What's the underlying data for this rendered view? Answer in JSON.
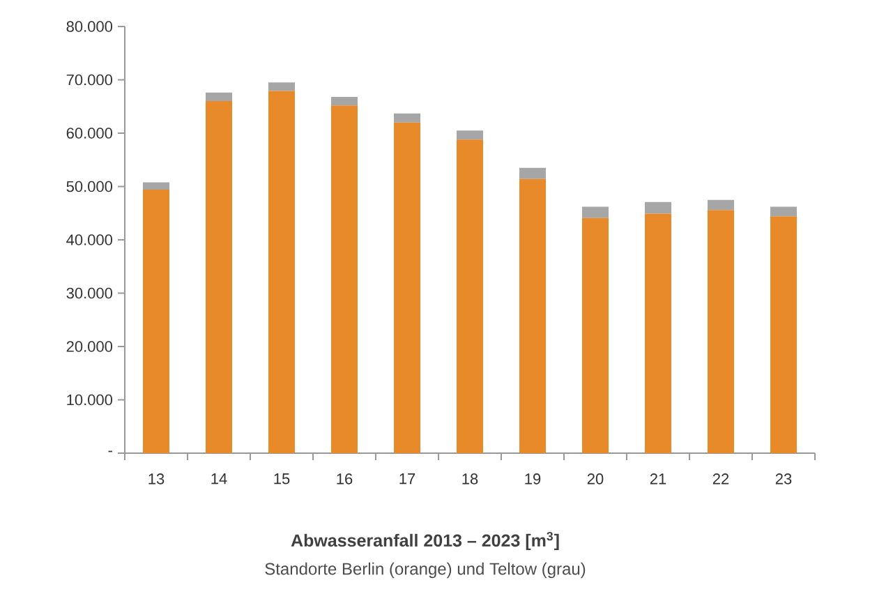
{
  "chart_data": {
    "type": "bar",
    "stacked": true,
    "title": "Abwasseranfall 2013 – 2023 [m$^{3}$]",
    "subtitle": "Standorte Berlin (orange) und Teltow (grau)",
    "categories": [
      "13",
      "14",
      "15",
      "16",
      "17",
      "18",
      "19",
      "20",
      "21",
      "22",
      "23"
    ],
    "series": [
      {
        "color": "#e8892a",
        "values": [
          49400,
          66000,
          67900,
          65200,
          62000,
          58800,
          51400,
          44100,
          44900,
          45600,
          44400
        ]
      },
      {
        "color": "#a6a6a6",
        "values": [
          1400,
          1600,
          1600,
          1600,
          1700,
          1700,
          2100,
          2100,
          2200,
          1900,
          1800
        ]
      }
    ],
    "ylim": [
      0,
      80000
    ],
    "yticks": [
      {
        "value": 0,
        "label": "-"
      },
      {
        "value": 10000,
        "label": "10.000"
      },
      {
        "value": 20000,
        "label": "20.000"
      },
      {
        "value": 30000,
        "label": "30.000"
      },
      {
        "value": 40000,
        "label": "40.000"
      },
      {
        "value": 50000,
        "label": "50.000"
      },
      {
        "value": 60000,
        "label": "60.000"
      },
      {
        "value": 70000,
        "label": "70.000"
      },
      {
        "value": 80000,
        "label": "80.000"
      }
    ],
    "grid": false
  }
}
